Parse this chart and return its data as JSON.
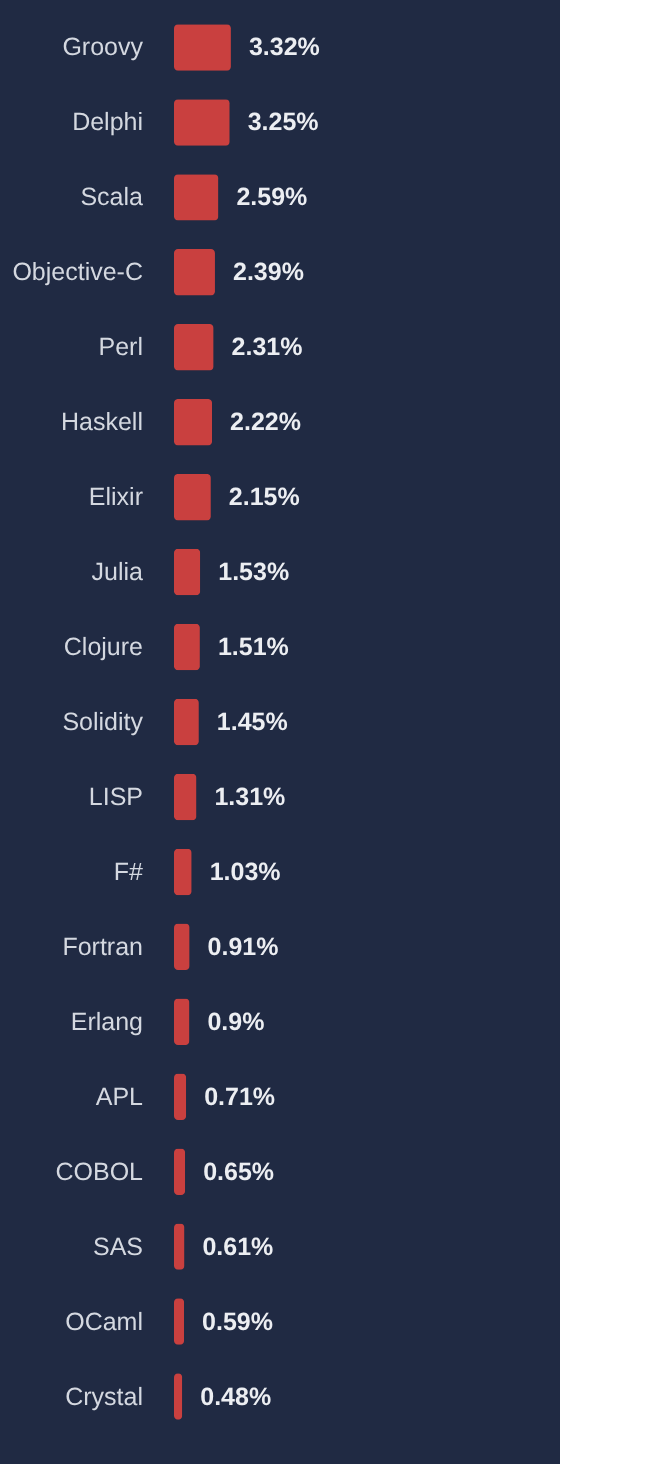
{
  "chart_data": {
    "type": "bar",
    "orientation": "horizontal",
    "categories": [
      "Groovy",
      "Delphi",
      "Scala",
      "Objective-C",
      "Perl",
      "Haskell",
      "Elixir",
      "Julia",
      "Clojure",
      "Solidity",
      "LISP",
      "F#",
      "Fortran",
      "Erlang",
      "APL",
      "COBOL",
      "SAS",
      "OCaml",
      "Crystal"
    ],
    "values": [
      3.32,
      3.25,
      2.59,
      2.39,
      2.31,
      2.22,
      2.15,
      1.53,
      1.51,
      1.45,
      1.31,
      1.03,
      0.91,
      0.9,
      0.71,
      0.65,
      0.61,
      0.59,
      0.48
    ],
    "value_labels": [
      "3.32%",
      "3.25%",
      "2.59%",
      "2.39%",
      "2.31%",
      "2.22%",
      "2.15%",
      "1.53%",
      "1.51%",
      "1.45%",
      "1.31%",
      "1.03%",
      "0.91%",
      "0.9%",
      "0.71%",
      "0.65%",
      "0.61%",
      "0.59%",
      "0.48%"
    ],
    "color": "#c9403f",
    "tick_labels": "y"
  }
}
